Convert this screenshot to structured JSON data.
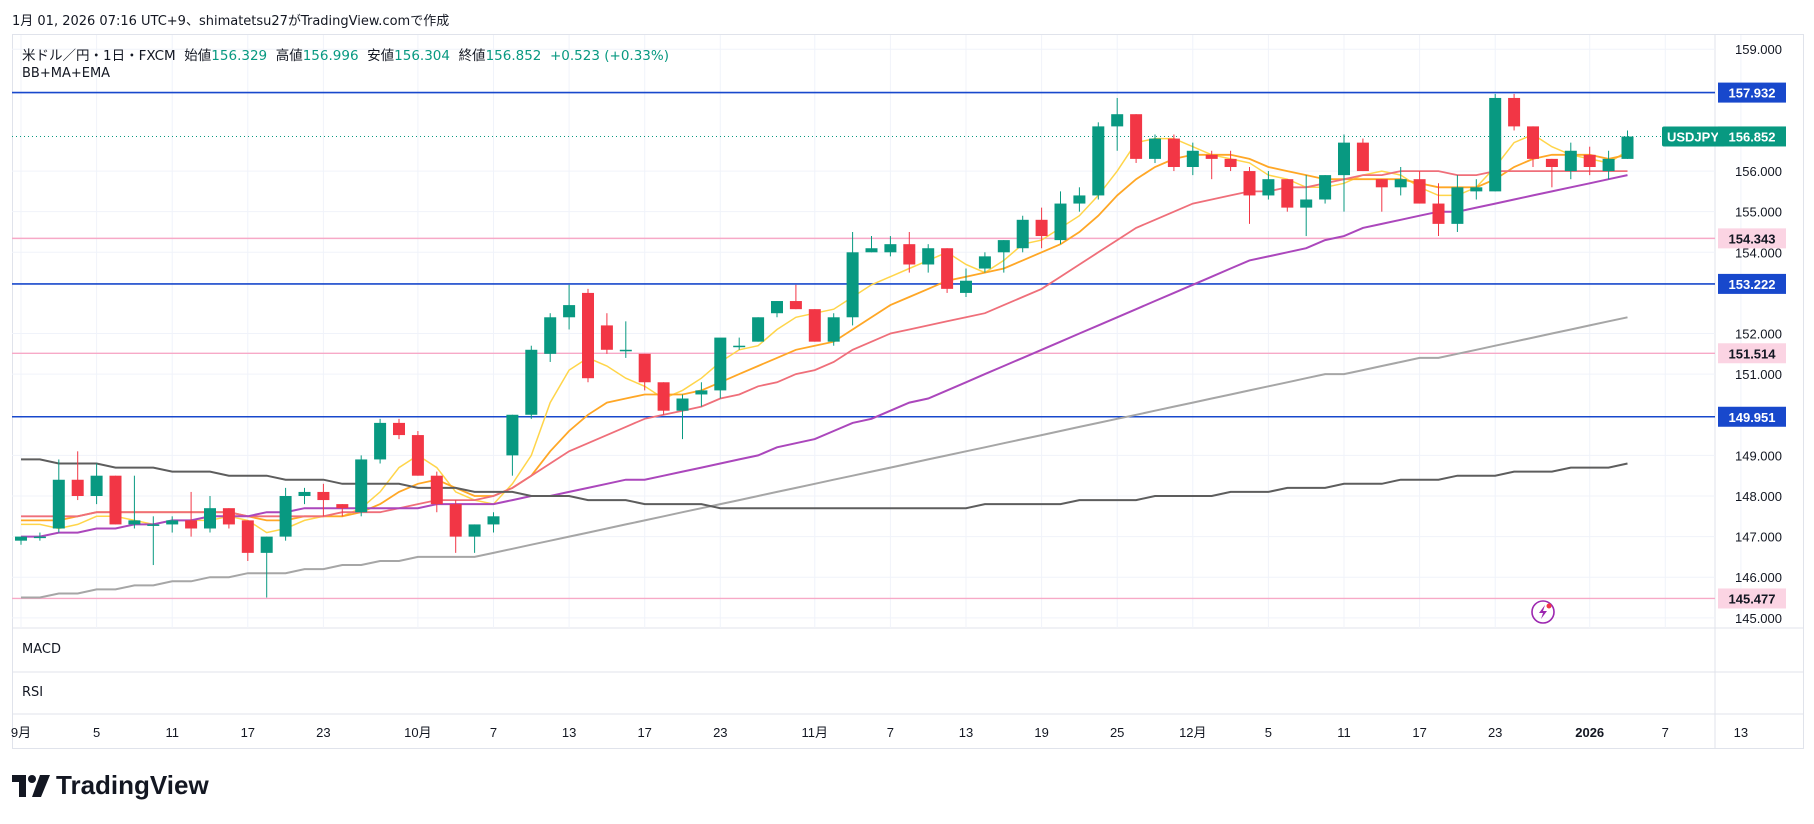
{
  "header": {
    "text": "1月 01, 2026 07:16 UTC+9、shimatetsu27がTradingView.comで作成"
  },
  "legend": {
    "symbol": "米ドル／円・1日・FXCM",
    "open_label": "始値",
    "open": "156.329",
    "high_label": "高値",
    "high": "156.996",
    "low_label": "安値",
    "low": "156.304",
    "close_label": "終値",
    "close": "156.852",
    "change": "+0.523 (+0.33%)"
  },
  "indicators_label": "BB+MA+EMA",
  "panes": {
    "macd": "MACD",
    "rsi": "RSI"
  },
  "logo": {
    "text": "TradingView"
  },
  "colors": {
    "up": "#089981",
    "down": "#f23645",
    "hline_blue": "#1848cc",
    "hline_pink": "#f7a9c7",
    "ema_short": "#ffd54a",
    "ema_mid": "#ffa726",
    "ema_long": "#ef6f7a",
    "ma_purple": "#ab47bc",
    "ma_grey": "#a6a6a6",
    "ma_dark": "#5d5d5d"
  },
  "chart_data": {
    "type": "candlestick",
    "symbol_badge": "USDJPY",
    "last_price": 156.852,
    "ylim": [
      144.75,
      159.35
    ],
    "y_ticks": [
      145.0,
      146.0,
      147.0,
      148.0,
      149.0,
      151.0,
      152.0,
      154.0,
      155.0,
      156.0,
      159.0
    ],
    "y_tick_labels": [
      "145.000",
      "146.000",
      "147.000",
      "148.000",
      "149.000",
      "151.000",
      "152.000",
      "154.000",
      "155.000",
      "156.000",
      "159.000"
    ],
    "horizontal_lines": [
      {
        "value": 157.932,
        "label": "157.932",
        "color": "blue"
      },
      {
        "value": 154.343,
        "label": "154.343",
        "color": "pink"
      },
      {
        "value": 153.222,
        "label": "153.222",
        "color": "blue"
      },
      {
        "value": 151.514,
        "label": "151.514",
        "color": "pink"
      },
      {
        "value": 149.951,
        "label": "149.951",
        "color": "blue"
      },
      {
        "value": 145.477,
        "label": "145.477",
        "color": "pink"
      }
    ],
    "x_labels": [
      "9月",
      "5",
      "11",
      "17",
      "23",
      "10月",
      "7",
      "13",
      "17",
      "23",
      "11月",
      "7",
      "13",
      "19",
      "25",
      "12月",
      "5",
      "11",
      "17",
      "23",
      "2026",
      "7",
      "13"
    ],
    "x_label_bar_index": [
      0,
      4,
      8,
      12,
      16,
      21,
      25,
      29,
      33,
      37,
      42,
      46,
      50,
      54,
      58,
      62,
      66,
      70,
      74,
      78,
      83,
      87,
      91
    ],
    "candles": [
      [
        146.9,
        147.0,
        146.8,
        147.0
      ],
      [
        147.0,
        147.1,
        146.9,
        147.0
      ],
      [
        147.2,
        148.9,
        147.1,
        148.4
      ],
      [
        148.4,
        149.1,
        147.9,
        148.0
      ],
      [
        148.0,
        148.8,
        147.8,
        148.5
      ],
      [
        148.5,
        148.5,
        147.3,
        147.3
      ],
      [
        147.3,
        148.5,
        147.2,
        147.4
      ],
      [
        147.3,
        147.5,
        146.3,
        147.3
      ],
      [
        147.3,
        147.5,
        147.1,
        147.4
      ],
      [
        147.4,
        148.1,
        147.0,
        147.2
      ],
      [
        147.2,
        148.0,
        147.1,
        147.7
      ],
      [
        147.7,
        147.7,
        147.2,
        147.3
      ],
      [
        147.4,
        147.4,
        146.4,
        146.6
      ],
      [
        146.6,
        147.0,
        145.5,
        147.0
      ],
      [
        147.0,
        148.2,
        146.9,
        148.0
      ],
      [
        148.0,
        148.2,
        147.8,
        148.1
      ],
      [
        148.1,
        148.3,
        147.5,
        147.9
      ],
      [
        147.8,
        147.8,
        147.5,
        147.7
      ],
      [
        147.6,
        149.0,
        147.5,
        148.9
      ],
      [
        148.9,
        149.9,
        148.8,
        149.8
      ],
      [
        149.8,
        149.9,
        149.4,
        149.5
      ],
      [
        149.5,
        149.6,
        148.5,
        148.5
      ],
      [
        148.5,
        148.6,
        147.6,
        147.8
      ],
      [
        147.8,
        147.9,
        146.6,
        147.0
      ],
      [
        147.0,
        147.3,
        146.6,
        147.3
      ],
      [
        147.3,
        147.6,
        147.1,
        147.5
      ],
      [
        149.0,
        150.0,
        148.5,
        150.0
      ],
      [
        150.0,
        151.7,
        149.9,
        151.6
      ],
      [
        151.5,
        152.5,
        151.3,
        152.4
      ],
      [
        152.4,
        153.2,
        152.1,
        152.7
      ],
      [
        153.0,
        153.1,
        150.8,
        150.9
      ],
      [
        152.2,
        152.5,
        151.5,
        151.6
      ],
      [
        151.6,
        152.3,
        151.4,
        151.6
      ],
      [
        151.5,
        151.5,
        150.6,
        150.8
      ],
      [
        150.8,
        150.8,
        150.0,
        150.1
      ],
      [
        150.1,
        150.5,
        149.4,
        150.4
      ],
      [
        150.5,
        150.8,
        150.2,
        150.6
      ],
      [
        150.6,
        151.8,
        150.4,
        151.9
      ],
      [
        151.7,
        151.9,
        151.6,
        151.7
      ],
      [
        151.8,
        152.4,
        151.8,
        152.4
      ],
      [
        152.5,
        152.8,
        152.4,
        152.8
      ],
      [
        152.8,
        153.2,
        152.6,
        152.6
      ],
      [
        152.6,
        152.6,
        151.8,
        151.8
      ],
      [
        151.8,
        152.5,
        151.7,
        152.4
      ],
      [
        152.4,
        154.5,
        152.2,
        154.0
      ],
      [
        154.0,
        154.4,
        154.0,
        154.1
      ],
      [
        154.0,
        154.4,
        153.9,
        154.2
      ],
      [
        154.2,
        154.5,
        153.5,
        153.7
      ],
      [
        153.7,
        154.2,
        153.5,
        154.1
      ],
      [
        154.1,
        154.1,
        153.0,
        153.1
      ],
      [
        153.0,
        153.6,
        152.9,
        153.3
      ],
      [
        153.6,
        154.0,
        153.5,
        153.9
      ],
      [
        154.0,
        154.3,
        153.5,
        154.3
      ],
      [
        154.1,
        154.9,
        154.0,
        154.8
      ],
      [
        154.8,
        155.1,
        154.1,
        154.4
      ],
      [
        154.3,
        155.5,
        154.2,
        155.2
      ],
      [
        155.2,
        155.6,
        155.0,
        155.4
      ],
      [
        155.4,
        157.2,
        155.3,
        157.1
      ],
      [
        157.1,
        157.8,
        156.5,
        157.4
      ],
      [
        157.4,
        157.4,
        156.2,
        156.3
      ],
      [
        156.3,
        156.9,
        156.2,
        156.8
      ],
      [
        156.8,
        156.9,
        156.0,
        156.1
      ],
      [
        156.1,
        156.7,
        155.9,
        156.5
      ],
      [
        156.4,
        156.5,
        155.8,
        156.3
      ],
      [
        156.3,
        156.5,
        156.0,
        156.1
      ],
      [
        156.0,
        156.1,
        154.7,
        155.4
      ],
      [
        155.4,
        156.0,
        155.3,
        155.8
      ],
      [
        155.8,
        155.8,
        155.0,
        155.1
      ],
      [
        155.1,
        155.9,
        154.4,
        155.3
      ],
      [
        155.3,
        155.9,
        155.2,
        155.9
      ],
      [
        155.9,
        156.9,
        155.0,
        156.7
      ],
      [
        156.7,
        156.8,
        156.0,
        156.0
      ],
      [
        155.8,
        155.8,
        155.0,
        155.6
      ],
      [
        155.6,
        156.1,
        155.4,
        155.8
      ],
      [
        155.8,
        156.0,
        155.2,
        155.2
      ],
      [
        155.2,
        155.7,
        154.4,
        154.7
      ],
      [
        154.7,
        155.9,
        154.5,
        155.6
      ],
      [
        155.5,
        155.8,
        155.3,
        155.6
      ],
      [
        155.5,
        157.9,
        155.5,
        157.8
      ],
      [
        157.8,
        157.9,
        157.0,
        157.1
      ],
      [
        157.1,
        157.1,
        156.1,
        156.3
      ],
      [
        156.3,
        156.3,
        155.6,
        156.1
      ],
      [
        156.0,
        156.7,
        155.8,
        156.5
      ],
      [
        156.4,
        156.6,
        155.9,
        156.1
      ],
      [
        156.0,
        156.5,
        155.8,
        156.3
      ],
      [
        156.3,
        157.0,
        156.3,
        156.85
      ]
    ],
    "series": [
      {
        "key": "ema_short",
        "values": [
          147.3,
          147.3,
          147.2,
          147.3,
          147.5,
          147.5,
          147.4,
          147.3,
          147.4,
          147.4,
          147.4,
          147.5,
          147.4,
          147.1,
          147.2,
          147.4,
          147.5,
          147.5,
          147.7,
          148.1,
          148.7,
          149.0,
          148.7,
          148.1,
          147.9,
          147.8,
          148.3,
          149.0,
          150.3,
          151.1,
          151.4,
          151.2,
          150.9,
          150.7,
          150.4,
          150.6,
          150.9,
          151.3,
          151.6,
          151.7,
          152.1,
          152.4,
          152.5,
          152.6,
          152.9,
          153.2,
          153.4,
          153.6,
          153.8,
          154.0,
          153.7,
          153.5,
          153.8,
          154.2,
          154.3,
          154.6,
          154.9,
          155.4,
          156.0,
          156.7,
          156.8,
          156.8,
          156.6,
          156.4,
          156.3,
          156.2,
          155.9,
          155.8,
          155.6,
          155.6,
          155.7,
          155.9,
          156.0,
          155.9,
          155.6,
          155.4,
          155.4,
          155.6,
          156.1,
          156.7,
          156.9,
          156.6,
          156.4,
          156.3,
          156.2,
          156.5
        ]
      },
      {
        "key": "ema_mid",
        "values": [
          147.4,
          147.4,
          147.4,
          147.5,
          147.6,
          147.6,
          147.6,
          147.6,
          147.6,
          147.6,
          147.6,
          147.6,
          147.5,
          147.4,
          147.4,
          147.5,
          147.5,
          147.5,
          147.6,
          147.8,
          148.1,
          148.3,
          148.4,
          148.2,
          148.0,
          148.0,
          148.2,
          148.5,
          149.1,
          149.6,
          150.0,
          150.3,
          150.4,
          150.5,
          150.5,
          150.5,
          150.6,
          150.8,
          151.0,
          151.2,
          151.4,
          151.6,
          151.7,
          151.8,
          152.1,
          152.4,
          152.7,
          152.9,
          153.1,
          153.3,
          153.4,
          153.5,
          153.6,
          153.8,
          154.0,
          154.2,
          154.5,
          154.9,
          155.4,
          155.8,
          156.1,
          156.3,
          156.4,
          156.4,
          156.4,
          156.3,
          156.1,
          156.0,
          155.9,
          155.8,
          155.8,
          155.8,
          155.8,
          155.8,
          155.7,
          155.6,
          155.6,
          155.6,
          155.8,
          156.1,
          156.3,
          156.4,
          156.4,
          156.4,
          156.3,
          156.4
        ]
      },
      {
        "key": "ema_long",
        "values": [
          147.5,
          147.5,
          147.5,
          147.5,
          147.6,
          147.6,
          147.6,
          147.6,
          147.6,
          147.6,
          147.6,
          147.6,
          147.5,
          147.5,
          147.5,
          147.5,
          147.5,
          147.6,
          147.6,
          147.6,
          147.7,
          147.8,
          147.9,
          147.9,
          147.9,
          148.0,
          148.2,
          148.5,
          148.8,
          149.1,
          149.3,
          149.5,
          149.7,
          149.9,
          150.0,
          150.1,
          150.2,
          150.4,
          150.5,
          150.7,
          150.8,
          151.0,
          151.1,
          151.3,
          151.6,
          151.8,
          152.0,
          152.1,
          152.2,
          152.3,
          152.4,
          152.5,
          152.7,
          152.9,
          153.1,
          153.4,
          153.7,
          154.0,
          154.3,
          154.6,
          154.8,
          155.0,
          155.2,
          155.3,
          155.4,
          155.5,
          155.5,
          155.6,
          155.6,
          155.7,
          155.8,
          155.9,
          155.9,
          156.0,
          156.0,
          156.0,
          155.9,
          155.9,
          156.0,
          156.0,
          156.0,
          156.0,
          156.0,
          156.0,
          156.0,
          156.0
        ]
      },
      {
        "key": "ma_purple",
        "values": [
          147.0,
          147.0,
          147.1,
          147.1,
          147.2,
          147.2,
          147.3,
          147.3,
          147.4,
          147.4,
          147.5,
          147.5,
          147.5,
          147.6,
          147.6,
          147.7,
          147.7,
          147.7,
          147.7,
          147.7,
          147.7,
          147.7,
          147.8,
          147.8,
          147.8,
          147.8,
          147.9,
          148.0,
          148.0,
          148.1,
          148.2,
          148.3,
          148.4,
          148.4,
          148.5,
          148.6,
          148.7,
          148.8,
          148.9,
          149.0,
          149.2,
          149.3,
          149.4,
          149.6,
          149.8,
          149.9,
          150.1,
          150.3,
          150.4,
          150.6,
          150.8,
          151.0,
          151.2,
          151.4,
          151.6,
          151.8,
          152.0,
          152.2,
          152.4,
          152.6,
          152.8,
          153.0,
          153.2,
          153.4,
          153.6,
          153.8,
          153.9,
          154.0,
          154.1,
          154.3,
          154.4,
          154.6,
          154.7,
          154.8,
          154.9,
          155.0,
          155.0,
          155.1,
          155.2,
          155.3,
          155.4,
          155.5,
          155.6,
          155.7,
          155.8,
          155.9
        ]
      },
      {
        "key": "ma_grey",
        "values": [
          145.5,
          145.5,
          145.6,
          145.6,
          145.7,
          145.7,
          145.8,
          145.8,
          145.9,
          145.9,
          146.0,
          146.0,
          146.1,
          146.1,
          146.1,
          146.2,
          146.2,
          146.3,
          146.3,
          146.4,
          146.4,
          146.5,
          146.5,
          146.5,
          146.5,
          146.6,
          146.7,
          146.8,
          146.9,
          147.0,
          147.1,
          147.2,
          147.3,
          147.4,
          147.5,
          147.6,
          147.7,
          147.8,
          147.9,
          148.0,
          148.1,
          148.2,
          148.3,
          148.4,
          148.5,
          148.6,
          148.7,
          148.8,
          148.9,
          149.0,
          149.1,
          149.2,
          149.3,
          149.4,
          149.5,
          149.6,
          149.7,
          149.8,
          149.9,
          150.0,
          150.1,
          150.2,
          150.3,
          150.4,
          150.5,
          150.6,
          150.7,
          150.8,
          150.9,
          151.0,
          151.0,
          151.1,
          151.2,
          151.3,
          151.4,
          151.4,
          151.5,
          151.6,
          151.7,
          151.8,
          151.9,
          152.0,
          152.1,
          152.2,
          152.3,
          152.4
        ]
      },
      {
        "key": "ma_dark",
        "values": [
          148.9,
          148.9,
          148.8,
          148.8,
          148.8,
          148.7,
          148.7,
          148.7,
          148.6,
          148.6,
          148.6,
          148.5,
          148.5,
          148.5,
          148.4,
          148.4,
          148.4,
          148.3,
          148.3,
          148.3,
          148.3,
          148.2,
          148.2,
          148.2,
          148.1,
          148.1,
          148.1,
          148.0,
          148.0,
          148.0,
          147.9,
          147.9,
          147.9,
          147.8,
          147.8,
          147.8,
          147.8,
          147.7,
          147.7,
          147.7,
          147.7,
          147.7,
          147.7,
          147.7,
          147.7,
          147.7,
          147.7,
          147.7,
          147.7,
          147.7,
          147.7,
          147.8,
          147.8,
          147.8,
          147.8,
          147.8,
          147.9,
          147.9,
          147.9,
          147.9,
          148.0,
          148.0,
          148.0,
          148.0,
          148.1,
          148.1,
          148.1,
          148.2,
          148.2,
          148.2,
          148.3,
          148.3,
          148.3,
          148.4,
          148.4,
          148.4,
          148.5,
          148.5,
          148.5,
          148.6,
          148.6,
          148.6,
          148.7,
          148.7,
          148.7,
          148.8
        ]
      }
    ]
  }
}
